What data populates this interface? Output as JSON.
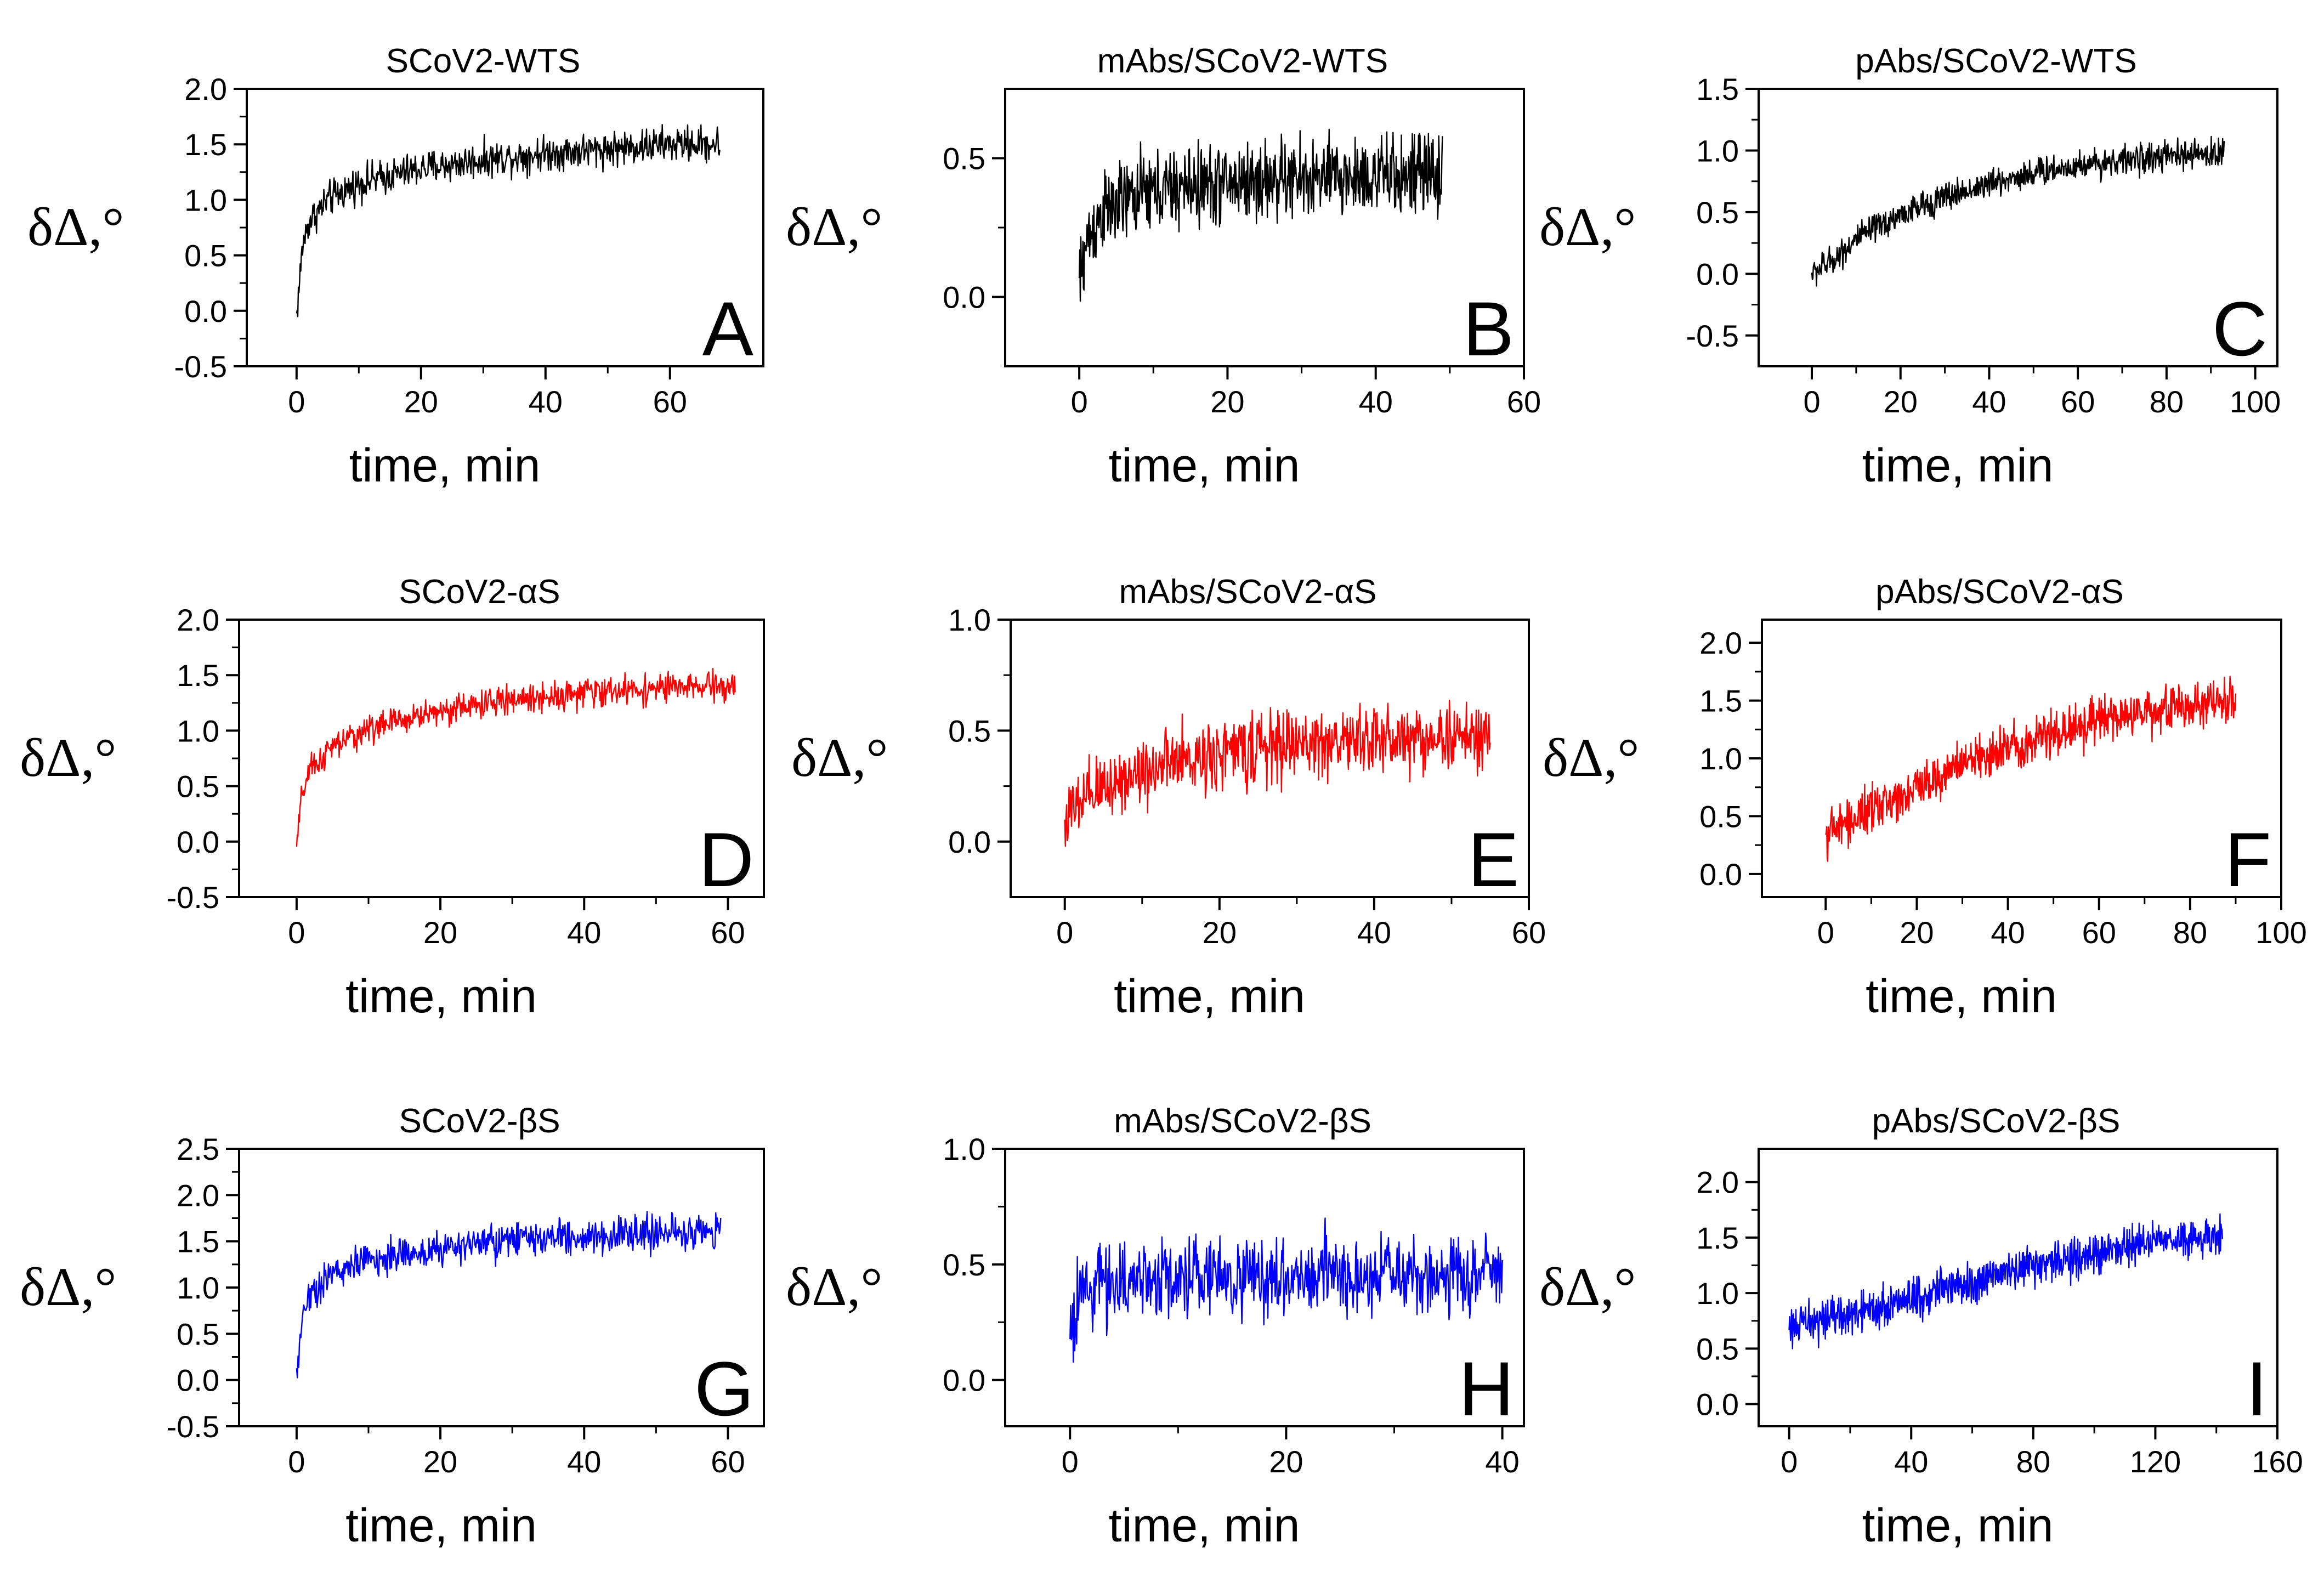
{
  "colors": {
    "black": "#000000",
    "red": "#ff0000",
    "blue": "#0000ff"
  },
  "chart_data": [
    {
      "type": "line",
      "panel": "A",
      "title": "SCoV2-WTS",
      "xlabel": "time, min",
      "ylabel": "δΔ,°",
      "xlim": [
        -8,
        75
      ],
      "ylim": [
        -0.5,
        2.0
      ],
      "xticks": [
        0,
        20,
        40,
        60
      ],
      "xtick_labels": [
        "0",
        "20",
        "40",
        "60"
      ],
      "yticks": [
        -0.5,
        0.0,
        0.5,
        1.0,
        1.5,
        2.0
      ],
      "ytick_labels": [
        "-0.5",
        "0.0",
        "0.5",
        "1.0",
        "1.5",
        "2.0"
      ],
      "series": [
        {
          "name": "SCoV2-WTS",
          "color": "#000000",
          "x": [
            0,
            1,
            2,
            5,
            10,
            20,
            30,
            40,
            50,
            60,
            68
          ],
          "y": [
            -0.05,
            0.6,
            0.8,
            1.0,
            1.15,
            1.28,
            1.36,
            1.42,
            1.46,
            1.5,
            1.5
          ],
          "noise": 0.12,
          "n": 700
        }
      ]
    },
    {
      "type": "line",
      "panel": "B",
      "title": "mAbs/SCoV2-WTS",
      "xlabel": "time, min",
      "ylabel": "δΔ,°",
      "xlim": [
        -10,
        60
      ],
      "ylim": [
        -0.25,
        0.75
      ],
      "xticks": [
        0,
        20,
        40,
        60
      ],
      "xtick_labels": [
        "0",
        "20",
        "40",
        "60"
      ],
      "yticks": [
        0.0,
        0.5
      ],
      "ytick_labels": [
        "0.0",
        "0.5"
      ],
      "series": [
        {
          "name": "mAbs/SCoV2-WTS",
          "color": "#000000",
          "x": [
            0,
            1,
            3,
            8,
            15,
            25,
            35,
            45,
            49
          ],
          "y": [
            0.05,
            0.2,
            0.3,
            0.37,
            0.4,
            0.42,
            0.43,
            0.44,
            0.44
          ],
          "noise": 0.11,
          "n": 700
        }
      ]
    },
    {
      "type": "line",
      "panel": "C",
      "title": "pAbs/SCoV2-WTS",
      "xlabel": "time, min",
      "ylabel": "δΔ,°",
      "xlim": [
        -12,
        105
      ],
      "ylim": [
        -0.75,
        1.5
      ],
      "xticks": [
        0,
        20,
        40,
        60,
        80,
        100
      ],
      "xtick_labels": [
        "0",
        "20",
        "40",
        "60",
        "80",
        "100"
      ],
      "yticks": [
        -0.5,
        0.0,
        0.5,
        1.0,
        1.5
      ],
      "ytick_labels": [
        "-0.5",
        "0.0",
        "0.5",
        "1.0",
        "1.5"
      ],
      "series": [
        {
          "name": "pAbs/SCoV2-WTS",
          "color": "#000000",
          "x": [
            0,
            5,
            10,
            20,
            30,
            40,
            50,
            60,
            70,
            80,
            93
          ],
          "y": [
            0.0,
            0.12,
            0.28,
            0.48,
            0.62,
            0.73,
            0.82,
            0.88,
            0.92,
            0.95,
            0.98
          ],
          "noise": 0.09,
          "n": 800
        }
      ]
    },
    {
      "type": "line",
      "panel": "D",
      "title": "SCoV2-αS",
      "xlabel": "time, min",
      "ylabel": "δΔ,°",
      "xlim": [
        -8,
        65
      ],
      "ylim": [
        -0.5,
        2.0
      ],
      "xticks": [
        0,
        20,
        40,
        60
      ],
      "xtick_labels": [
        "0",
        "20",
        "40",
        "60"
      ],
      "yticks": [
        -0.5,
        0.0,
        0.5,
        1.0,
        1.5,
        2.0
      ],
      "ytick_labels": [
        "-0.5",
        "0.0",
        "0.5",
        "1.0",
        "1.5",
        "2.0"
      ],
      "series": [
        {
          "name": "SCoV2-αS",
          "color": "#ff0000",
          "x": [
            0,
            0.8,
            2,
            5,
            10,
            20,
            30,
            40,
            50,
            61
          ],
          "y": [
            -0.05,
            0.45,
            0.65,
            0.85,
            1.02,
            1.18,
            1.28,
            1.34,
            1.38,
            1.4
          ],
          "noise": 0.1,
          "n": 650
        }
      ]
    },
    {
      "type": "line",
      "panel": "E",
      "title": "mAbs/SCoV2-αS",
      "xlabel": "time, min",
      "ylabel": "δΔ,°",
      "xlim": [
        -7,
        60
      ],
      "ylim": [
        -0.25,
        1.0
      ],
      "xticks": [
        0,
        20,
        40,
        60
      ],
      "xtick_labels": [
        "0",
        "20",
        "40",
        "60"
      ],
      "yticks": [
        0.0,
        0.5,
        1.0
      ],
      "ytick_labels": [
        "0.0",
        "0.5",
        "1.0"
      ],
      "series": [
        {
          "name": "mAbs/SCoV2-αS",
          "color": "#ff0000",
          "x": [
            0,
            5,
            10,
            20,
            30,
            40,
            50,
            55
          ],
          "y": [
            0.1,
            0.25,
            0.32,
            0.4,
            0.44,
            0.46,
            0.47,
            0.47
          ],
          "noise": 0.12,
          "n": 700
        }
      ]
    },
    {
      "type": "line",
      "panel": "F",
      "title": "pAbs/SCoV2-αS",
      "xlabel": "time, min",
      "ylabel": "δΔ,°",
      "xlim": [
        -14,
        100
      ],
      "ylim": [
        -0.2,
        2.2
      ],
      "xticks": [
        0,
        20,
        40,
        60,
        80,
        100
      ],
      "xtick_labels": [
        "0",
        "20",
        "40",
        "60",
        "80",
        "100"
      ],
      "yticks": [
        0.0,
        0.5,
        1.0,
        1.5,
        2.0
      ],
      "ytick_labels": [
        "0.0",
        "0.5",
        "1.0",
        "1.5",
        "2.0"
      ],
      "series": [
        {
          "name": "pAbs/SCoV2-αS",
          "color": "#ff0000",
          "x": [
            0,
            5,
            10,
            20,
            30,
            40,
            50,
            60,
            70,
            80,
            90
          ],
          "y": [
            0.35,
            0.45,
            0.55,
            0.75,
            0.95,
            1.1,
            1.22,
            1.32,
            1.4,
            1.45,
            1.5
          ],
          "noise": 0.15,
          "n": 800
        }
      ]
    },
    {
      "type": "line",
      "panel": "G",
      "title": "SCoV2-βS",
      "xlabel": "time, min",
      "ylabel": "δΔ,°",
      "xlim": [
        -8,
        65
      ],
      "ylim": [
        -0.5,
        2.5
      ],
      "xticks": [
        0,
        20,
        40,
        60
      ],
      "xtick_labels": [
        "0",
        "20",
        "40",
        "60"
      ],
      "yticks": [
        -0.5,
        0.0,
        0.5,
        1.0,
        1.5,
        2.0,
        2.5
      ],
      "ytick_labels": [
        "-0.5",
        "0.0",
        "0.5",
        "1.0",
        "1.5",
        "2.0",
        "2.5"
      ],
      "series": [
        {
          "name": "SCoV2-βS",
          "color": "#0000ff",
          "x": [
            0,
            0.7,
            2,
            5,
            10,
            20,
            30,
            40,
            50,
            59
          ],
          "y": [
            -0.05,
            0.7,
            0.95,
            1.15,
            1.3,
            1.42,
            1.5,
            1.55,
            1.58,
            1.6
          ],
          "noise": 0.15,
          "n": 600
        }
      ]
    },
    {
      "type": "line",
      "panel": "H",
      "title": "mAbs/SCoV2-βS",
      "xlabel": "time, min",
      "ylabel": "δΔ,°",
      "xlim": [
        -6,
        42
      ],
      "ylim": [
        -0.2,
        1.0
      ],
      "xticks": [
        0,
        20,
        40
      ],
      "xtick_labels": [
        "0",
        "20",
        "40"
      ],
      "yticks": [
        0.0,
        0.5,
        1.0
      ],
      "ytick_labels": [
        "0.0",
        "0.5",
        "1.0"
      ],
      "series": [
        {
          "name": "mAbs/SCoV2-βS",
          "color": "#0000ff",
          "x": [
            0,
            1,
            3,
            10,
            20,
            30,
            40
          ],
          "y": [
            0.2,
            0.38,
            0.42,
            0.45,
            0.45,
            0.45,
            0.45
          ],
          "noise": 0.13,
          "n": 650
        }
      ]
    },
    {
      "type": "line",
      "panel": "I",
      "title": "pAbs/SCoV2-βS",
      "xlabel": "time, min",
      "ylabel": "δΔ,°",
      "xlim": [
        -10,
        160
      ],
      "ylim": [
        -0.2,
        2.3
      ],
      "xticks": [
        0,
        40,
        80,
        120,
        160
      ],
      "xtick_labels": [
        "0",
        "40",
        "80",
        "120",
        "160"
      ],
      "yticks": [
        0.0,
        0.5,
        1.0,
        1.5,
        2.0
      ],
      "ytick_labels": [
        "0.0",
        "0.5",
        "1.0",
        "1.5",
        "2.0"
      ],
      "series": [
        {
          "name": "pAbs/SCoV2-βS",
          "color": "#0000ff",
          "x": [
            0,
            10,
            20,
            40,
            60,
            80,
            100,
            120,
            142
          ],
          "y": [
            0.7,
            0.75,
            0.8,
            0.95,
            1.1,
            1.25,
            1.35,
            1.45,
            1.5
          ],
          "noise": 0.14,
          "n": 900
        }
      ]
    }
  ]
}
